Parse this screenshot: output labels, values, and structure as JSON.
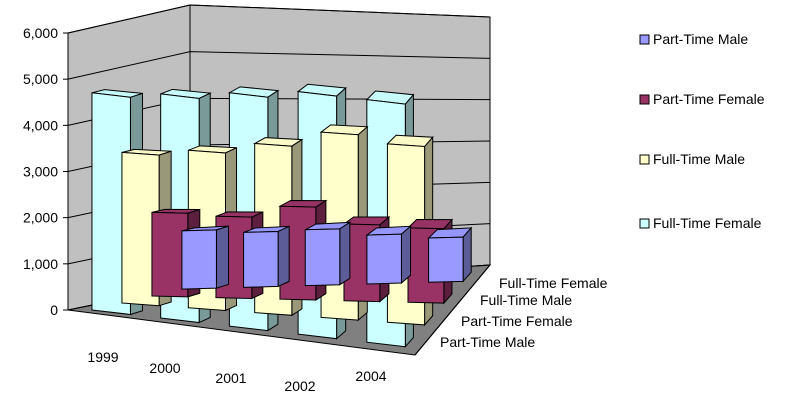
{
  "chart_data": {
    "type": "bar",
    "subtype": "3d-column",
    "categories": [
      "1999",
      "2000",
      "2001",
      "2002",
      "2004"
    ],
    "series": [
      {
        "name": "Part-Time Male",
        "values": [
          1250,
          1180,
          1200,
          1050,
          950
        ],
        "color": "#9999ff"
      },
      {
        "name": "Part-Time Female",
        "values": [
          1800,
          1750,
          2000,
          1650,
          1600
        ],
        "color": "#993366"
      },
      {
        "name": "Full-Time Male",
        "values": [
          3250,
          3400,
          3650,
          4000,
          3850
        ],
        "color": "#ffffcc"
      },
      {
        "name": "Full-Time Female",
        "values": [
          4700,
          4850,
          5050,
          5250,
          5250
        ],
        "color": "#ccffff"
      }
    ],
    "y_ticks": [
      "0",
      "1,000",
      "2,000",
      "3,000",
      "4,000",
      "5,000",
      "6,000"
    ],
    "ylim": [
      0,
      6000
    ],
    "grid": true,
    "legend_position": "right",
    "depth_axis_labels": [
      "Full-Time Female",
      "Full-Time Male",
      "Part-Time Female",
      "Part-Time Male"
    ]
  }
}
